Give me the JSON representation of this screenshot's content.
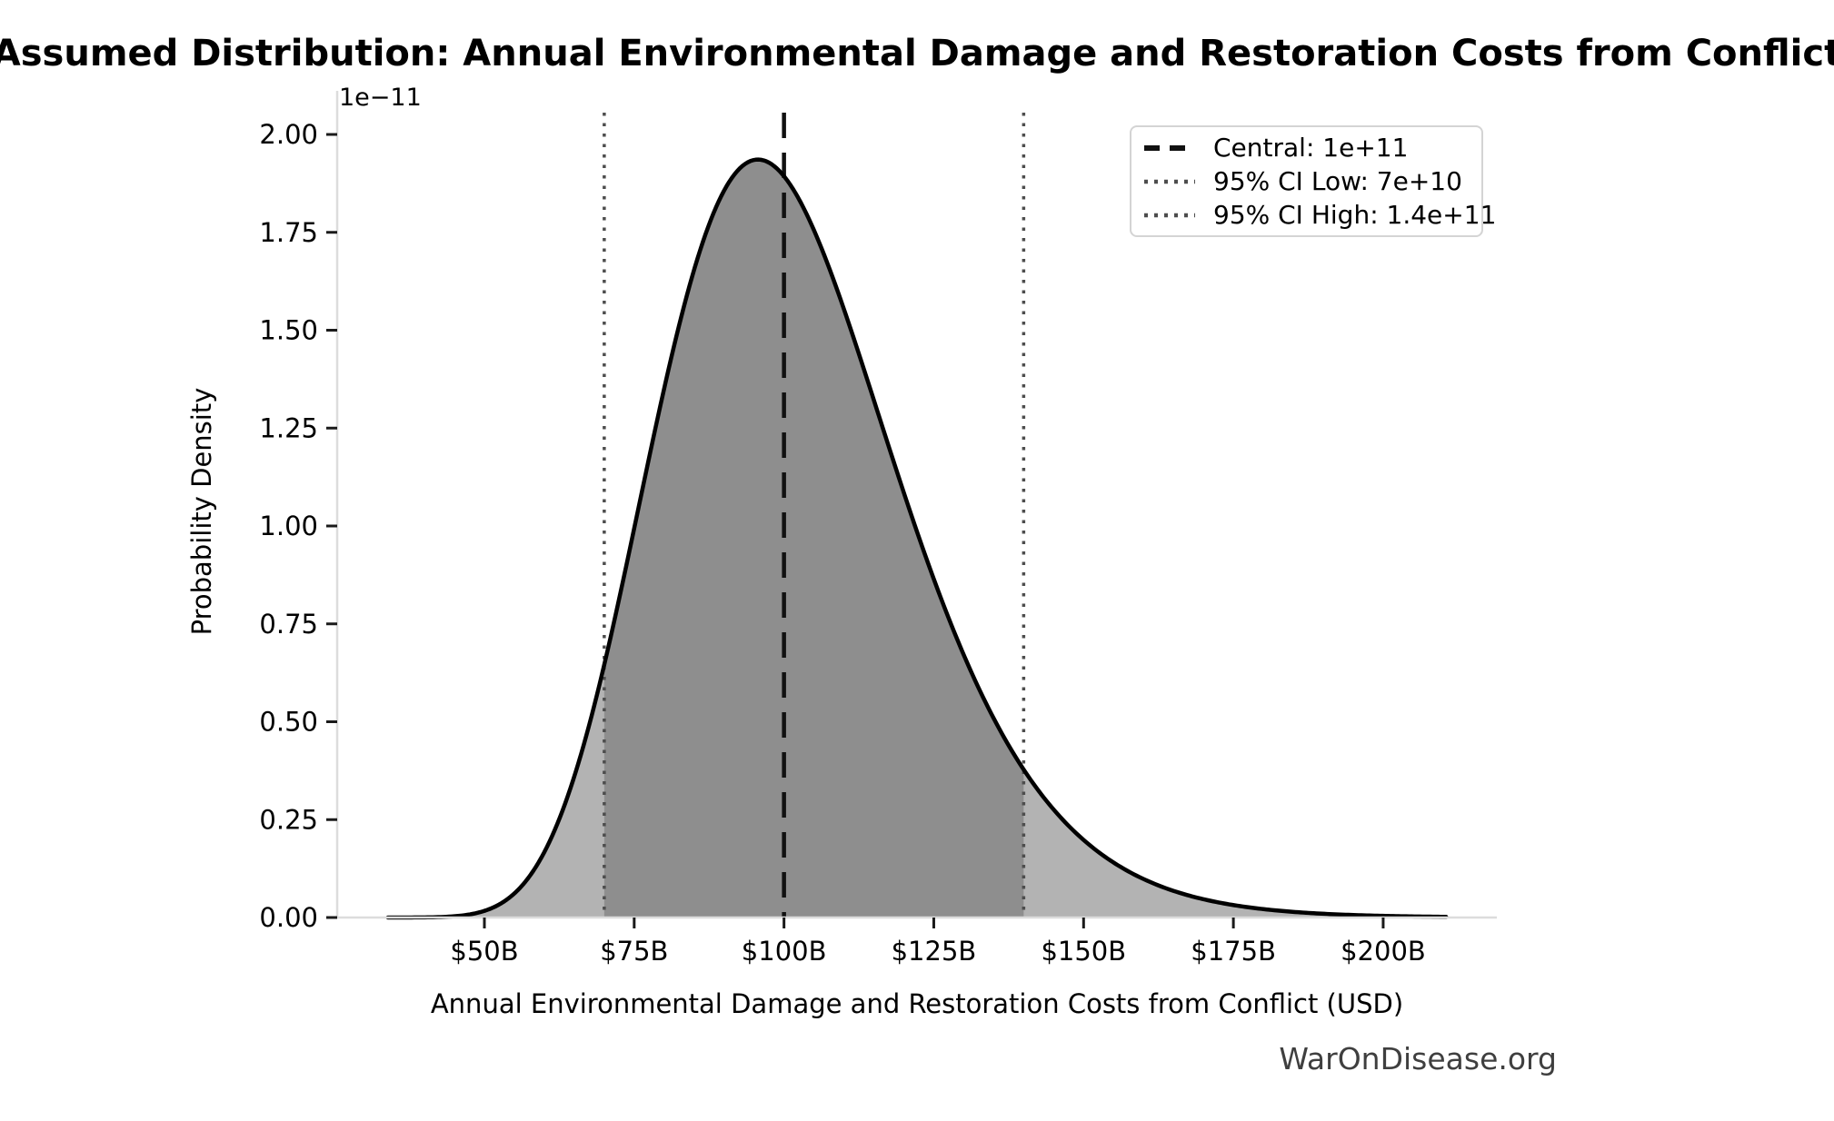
{
  "figure": {
    "watermark": "WarOnDisease.org"
  },
  "chart_data": {
    "type": "area",
    "title": "Assumed Distribution: Annual Environmental Damage and Restoration Costs from Conflict",
    "xlabel": "Annual Environmental Damage and Restoration Costs from Conflict (USD)",
    "ylabel": "Probability Density",
    "y_scale_offset_label": "1e−11",
    "grid": false,
    "x_tick_labels": [
      "$50B",
      "$75B",
      "$100B",
      "$125B",
      "$150B",
      "$175B",
      "$200B"
    ],
    "x_tick_values_billions": [
      50,
      75,
      100,
      125,
      150,
      175,
      200
    ],
    "y_tick_labels": [
      "0.00",
      "0.25",
      "0.50",
      "0.75",
      "1.00",
      "1.25",
      "1.50",
      "1.75",
      "2.00"
    ],
    "y_tick_values_1e11": [
      0,
      0.25,
      0.5,
      0.75,
      1.0,
      1.25,
      1.5,
      1.75,
      2.0
    ],
    "xlim_billions": [
      25.4,
      219.0
    ],
    "ylim_1e11": [
      0,
      2.06
    ],
    "legend": {
      "position": "upper right",
      "entries": [
        {
          "label": "Central: 1e+11",
          "style": "dashed",
          "color": "#111111"
        },
        {
          "label": "95% CI Low: 7e+10",
          "style": "dotted",
          "color": "#4d4d4d"
        },
        {
          "label": "95% CI High: 1.4e+11",
          "style": "dotted",
          "color": "#4d4d4d"
        }
      ]
    },
    "markers": {
      "central_usd": 100000000000,
      "ci_low_usd": 70000000000,
      "ci_high_usd": 140000000000,
      "central_billions": 100,
      "ci_low_billions": 70,
      "ci_high_billions": 140
    },
    "curve": {
      "distribution": "lognormal",
      "median_billions": 100,
      "sigma_log": 0.2107,
      "x_start_billions": 33.9,
      "x_end_billions": 210.5,
      "peak_x_billions": 95.7,
      "peak_density_1e11": 1.94
    },
    "sample_points_billions_vs_density_1e11": [
      [
        40,
        0.0004
      ],
      [
        50,
        0.017
      ],
      [
        60,
        0.17
      ],
      [
        70,
        0.64
      ],
      [
        80,
        1.35
      ],
      [
        90,
        1.86
      ],
      [
        95,
        1.94
      ],
      [
        100,
        1.89
      ],
      [
        110,
        1.55
      ],
      [
        120,
        1.09
      ],
      [
        130,
        0.67
      ],
      [
        140,
        0.38
      ],
      [
        150,
        0.2
      ],
      [
        160,
        0.1
      ],
      [
        175,
        0.032
      ],
      [
        200,
        0.004
      ],
      [
        210,
        0.002
      ]
    ],
    "colors": {
      "curve": "#000000",
      "fill_outer": "#b3b3b3",
      "fill_inner": "#8e8e8e",
      "central_line": "#111111",
      "ci_line": "#4d4d4d",
      "spine": "#dcdcdc",
      "tick": "#1a1a1a",
      "text": "#000000",
      "watermark": "#3f3f3f"
    }
  }
}
